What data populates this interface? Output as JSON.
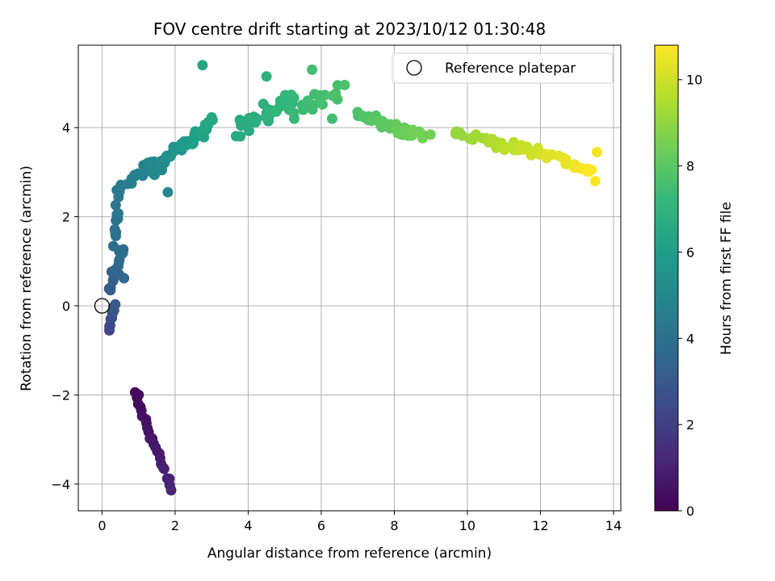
{
  "chart_data": {
    "type": "scatter",
    "title": "FOV centre drift starting at 2023/10/12 01:30:48",
    "xlabel": "Angular distance from reference (arcmin)",
    "ylabel": "Rotation from reference (arcmin)",
    "xlim": [
      -0.65,
      14.2
    ],
    "ylim": [
      -4.6,
      5.85
    ],
    "xticks": [
      0,
      2,
      4,
      6,
      8,
      10,
      12,
      14
    ],
    "yticks": [
      -4,
      -2,
      0,
      2,
      4
    ],
    "grid": true,
    "legend": {
      "entries": [
        "Reference platepar"
      ],
      "placement": "top-right",
      "marker": "open-circle"
    },
    "reference_point": {
      "x": 0,
      "y": 0
    },
    "colorbar": {
      "label": "Hours from first FF file",
      "colormap": "viridis",
      "range": [
        0,
        10.8
      ],
      "ticks": [
        0,
        2,
        4,
        6,
        8,
        10
      ]
    },
    "colormap_stops": [
      "#440154",
      "#482878",
      "#3e4a89",
      "#31688e",
      "#26828e",
      "#1f9e89",
      "#35b779",
      "#6ece58",
      "#b5de2b",
      "#fde725"
    ],
    "segments": [
      {
        "t": [
          0.2,
          1.1
        ],
        "x": [
          0.9,
          1.9
        ],
        "y": [
          -2.0,
          -4.1
        ],
        "n": 24,
        "xs": 0.1,
        "ys": 0.12
      },
      {
        "t": [
          2.2,
          3.0
        ],
        "x": [
          0.2,
          0.35
        ],
        "y": [
          -0.5,
          0.05
        ],
        "n": 10,
        "xs": 0.05,
        "ys": 0.12
      },
      {
        "t": [
          3.0,
          3.9
        ],
        "x": [
          0.2,
          0.55
        ],
        "y": [
          0.3,
          1.3
        ],
        "n": 18,
        "xs": 0.15,
        "ys": 0.2
      },
      {
        "t": [
          3.9,
          4.4
        ],
        "x": [
          0.3,
          0.5
        ],
        "y": [
          1.4,
          2.7
        ],
        "n": 14,
        "xs": 0.1,
        "ys": 0.25
      },
      {
        "t": [
          4.4,
          5.0
        ],
        "x": [
          0.5,
          1.4
        ],
        "y": [
          2.6,
          3.3
        ],
        "n": 16,
        "xs": 0.25,
        "ys": 0.2
      },
      {
        "t": [
          5.0,
          5.8
        ],
        "x": [
          1.4,
          2.3
        ],
        "y": [
          3.0,
          3.6
        ],
        "n": 22,
        "xs": 0.22,
        "ys": 0.2
      },
      {
        "t": [
          5.8,
          6.5
        ],
        "x": [
          2.2,
          3.1
        ],
        "y": [
          3.6,
          4.2
        ],
        "n": 24,
        "xs": 0.25,
        "ys": 0.22
      },
      {
        "t": [
          6.5,
          7.2
        ],
        "x": [
          3.7,
          5.2
        ],
        "y": [
          4.0,
          4.7
        ],
        "n": 30,
        "xs": 0.35,
        "ys": 0.3
      },
      {
        "t": [
          7.2,
          7.7
        ],
        "x": [
          5.0,
          6.5
        ],
        "y": [
          4.3,
          4.8
        ],
        "n": 22,
        "xs": 0.35,
        "ys": 0.35
      },
      {
        "t": [
          7.7,
          8.5
        ],
        "x": [
          7.0,
          8.8
        ],
        "y": [
          4.3,
          3.8
        ],
        "n": 40,
        "xs": 0.35,
        "ys": 0.2
      },
      {
        "t": [
          9.0,
          9.8
        ],
        "x": [
          9.7,
          11.4
        ],
        "y": [
          3.9,
          3.5
        ],
        "n": 28,
        "xs": 0.35,
        "ys": 0.2
      },
      {
        "t": [
          9.8,
          10.8
        ],
        "x": [
          11.4,
          13.5
        ],
        "y": [
          3.6,
          3.0
        ],
        "n": 32,
        "xs": 0.3,
        "ys": 0.2
      }
    ],
    "extra_points": [
      {
        "x": 2.75,
        "y": 5.4,
        "t": 6.3
      },
      {
        "x": 4.5,
        "y": 5.15,
        "t": 6.9
      },
      {
        "x": 5.75,
        "y": 5.3,
        "t": 7.5
      },
      {
        "x": 1.8,
        "y": 2.55,
        "t": 5.1
      },
      {
        "x": 0.6,
        "y": 0.62,
        "t": 3.6
      },
      {
        "x": 0.2,
        "y": -0.55,
        "t": 2.3
      },
      {
        "x": 6.3,
        "y": 4.2,
        "t": 7.5
      },
      {
        "x": 6.45,
        "y": 4.95,
        "t": 7.6
      },
      {
        "x": 1.0,
        "y": -2.0,
        "t": 0.3
      },
      {
        "x": 13.5,
        "y": 2.8,
        "t": 10.8
      },
      {
        "x": 13.55,
        "y": 3.45,
        "t": 10.6
      }
    ]
  }
}
